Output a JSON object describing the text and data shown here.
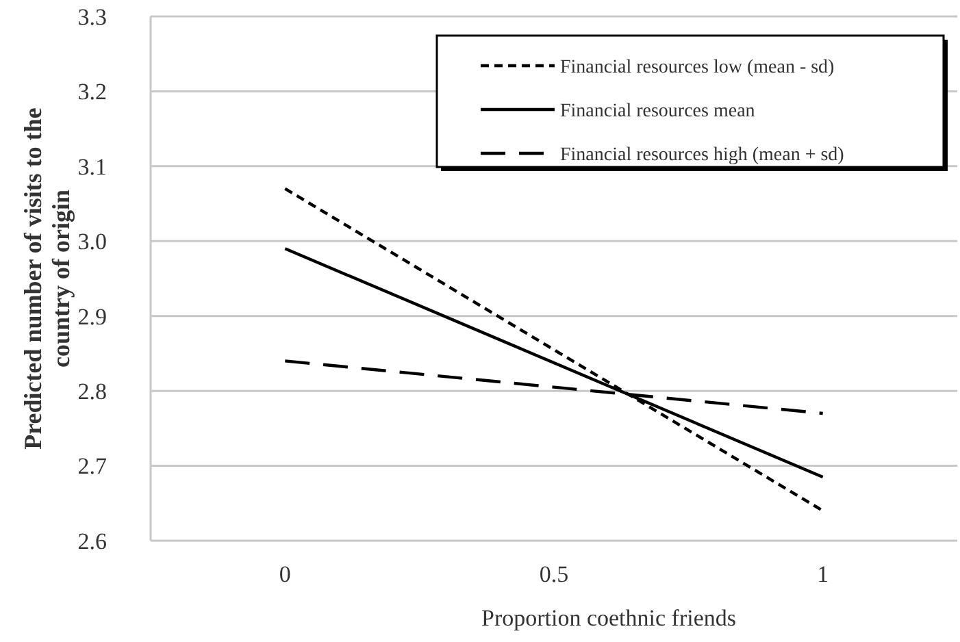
{
  "chart_data": {
    "type": "line",
    "xlabel": "Proportion coethnic friends",
    "ylabel": "Predicted number of visits to the country of origin",
    "categories": [
      "0",
      "0.5",
      "1"
    ],
    "series": [
      {
        "name": "Financial resources low (mean - sd)",
        "color": "#000000",
        "line_style": "dashed",
        "values": [
          3.07,
          null,
          2.64
        ]
      },
      {
        "name": "Financial resources mean",
        "color": "#000000",
        "line_style": "solid",
        "values": [
          2.99,
          null,
          2.685
        ]
      },
      {
        "name": "Financial resources high (mean + sd)",
        "color": "#000000",
        "line_style": "longdash",
        "values": [
          2.84,
          null,
          2.77
        ]
      }
    ],
    "ylim": [
      2.6,
      3.3
    ],
    "yticks": [
      {
        "value": 2.6,
        "label": "2.6"
      },
      {
        "value": 2.7,
        "label": "2.7"
      },
      {
        "value": 2.8,
        "label": "2.8"
      },
      {
        "value": 2.9,
        "label": "2.9"
      },
      {
        "value": 3.0,
        "label": "3.0"
      },
      {
        "value": 3.1,
        "label": "3.1"
      },
      {
        "value": 3.2,
        "label": "3.2"
      },
      {
        "value": 3.3,
        "label": "3.3"
      }
    ],
    "grid": "y",
    "legend": "top right",
    "marker": "none"
  }
}
